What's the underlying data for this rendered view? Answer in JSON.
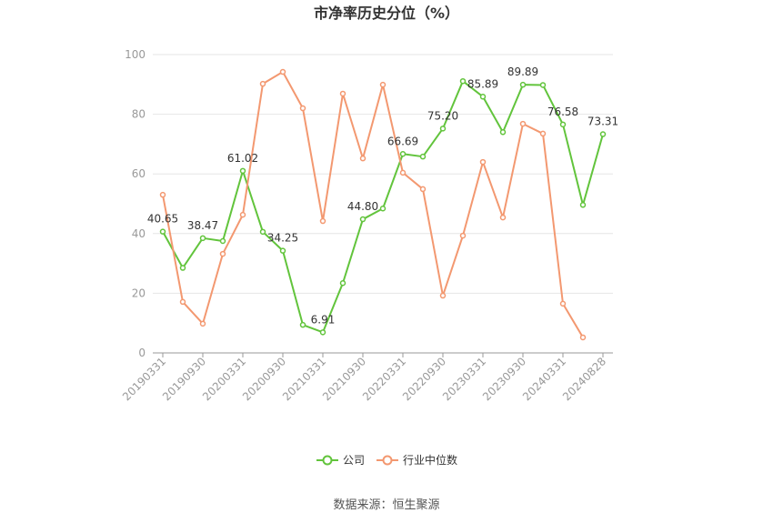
{
  "chart_data": {
    "type": "line",
    "title": "市净率历史分位（%）",
    "x_tick_labels": [
      "20190331",
      "20190930",
      "20200331",
      "20200930",
      "20210331",
      "20210930",
      "20220331",
      "20220930",
      "20230331",
      "20230930",
      "20240331",
      "20240828"
    ],
    "ylim": [
      0,
      100
    ],
    "y_ticks": [
      0,
      20,
      40,
      60,
      80,
      100
    ],
    "grid": true,
    "legend_position": "bottom",
    "series": [
      {
        "name": "公司",
        "color": "#62c43c",
        "values": [
          40.65,
          28.5,
          38.47,
          37.5,
          61.02,
          40.6,
          34.25,
          9.4,
          6.91,
          23.4,
          44.8,
          48.4,
          66.69,
          65.8,
          75.2,
          91.1,
          85.89,
          74.0,
          89.89,
          89.8,
          76.58,
          49.6,
          73.31
        ],
        "data_labels": [
          "40.65",
          null,
          "38.47",
          null,
          "61.02",
          null,
          "34.25",
          null,
          "6.91",
          null,
          "44.80",
          null,
          "66.69",
          null,
          "75.20",
          null,
          "85.89",
          null,
          "89.89",
          null,
          "76.58",
          null,
          "73.31"
        ]
      },
      {
        "name": "行业中位数",
        "color": "#f39870",
        "values": [
          53.0,
          17.1,
          9.8,
          33.2,
          46.3,
          90.2,
          94.2,
          82.0,
          44.2,
          86.9,
          65.2,
          89.9,
          60.4,
          54.9,
          19.2,
          39.3,
          64.0,
          45.4,
          76.8,
          73.5,
          16.5,
          5.2,
          null
        ]
      }
    ]
  },
  "source": "数据来源：恒生聚源"
}
